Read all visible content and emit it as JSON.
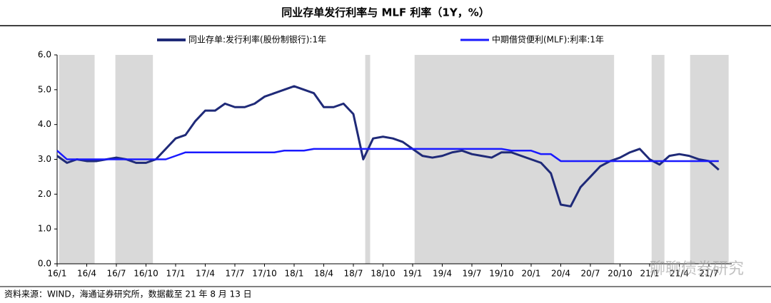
{
  "chart_data": {
    "type": "line",
    "title": "同业存单发行利率与 MLF 利率（1Y，%）",
    "source": "资料来源：WIND，海通证券研究所，数据截至 21 年 8 月 13 日",
    "watermark": "聊聊债券研究",
    "categories": [
      "16/1",
      null,
      null,
      "16/4",
      null,
      null,
      "16/7",
      null,
      null,
      "16/10",
      null,
      null,
      "17/1",
      null,
      null,
      "17/4",
      null,
      null,
      "17/7",
      null,
      null,
      "17/10",
      null,
      null,
      "18/1",
      null,
      null,
      "18/4",
      null,
      null,
      "18/7",
      null,
      null,
      "18/10",
      null,
      null,
      "19/1",
      null,
      null,
      "19/4",
      null,
      null,
      "19/7",
      null,
      null,
      "19/10",
      null,
      null,
      "20/1",
      null,
      null,
      "20/4",
      null,
      null,
      "20/7",
      null,
      null,
      "20/10",
      null,
      null,
      "21/1",
      null,
      null,
      "21/4",
      null,
      null,
      "21/7",
      null
    ],
    "series": [
      {
        "name": "同业存单:发行利率(股份制银行):1年",
        "color": "#1f2a78",
        "values": [
          3.1,
          2.9,
          3.0,
          2.95,
          2.95,
          3.0,
          3.05,
          3.0,
          2.9,
          2.9,
          3.0,
          3.3,
          3.6,
          3.7,
          4.1,
          4.4,
          4.4,
          4.6,
          4.5,
          4.5,
          4.6,
          4.8,
          4.9,
          5.0,
          5.1,
          5.0,
          4.9,
          4.5,
          4.5,
          4.6,
          4.3,
          3.0,
          3.6,
          3.65,
          3.6,
          3.5,
          3.3,
          3.1,
          3.05,
          3.1,
          3.2,
          3.25,
          3.15,
          3.1,
          3.05,
          3.2,
          3.2,
          3.1,
          3.0,
          2.9,
          2.6,
          1.7,
          1.65,
          2.2,
          2.5,
          2.8,
          2.95,
          3.05,
          3.2,
          3.3,
          3.0,
          2.85,
          3.1,
          3.15,
          3.1,
          3.0,
          2.95,
          2.7
        ]
      },
      {
        "name": "中期借贷便利(MLF):利率:1年",
        "color": "#1a1aff",
        "values": [
          3.25,
          3.0,
          3.0,
          3.0,
          3.0,
          3.0,
          3.0,
          3.0,
          3.0,
          3.0,
          3.0,
          3.0,
          3.1,
          3.2,
          3.2,
          3.2,
          3.2,
          3.2,
          3.2,
          3.2,
          3.2,
          3.2,
          3.2,
          3.25,
          3.25,
          3.25,
          3.3,
          3.3,
          3.3,
          3.3,
          3.3,
          3.3,
          3.3,
          3.3,
          3.3,
          3.3,
          3.3,
          3.3,
          3.3,
          3.3,
          3.3,
          3.3,
          3.3,
          3.3,
          3.3,
          3.3,
          3.25,
          3.25,
          3.25,
          3.15,
          3.15,
          2.95,
          2.95,
          2.95,
          2.95,
          2.95,
          2.95,
          2.95,
          2.95,
          2.95,
          2.95,
          2.95,
          2.95,
          2.95,
          2.95,
          2.95,
          2.95,
          2.95
        ]
      }
    ],
    "shaded_periods": [
      [
        0.2,
        3.8
      ],
      [
        5.9,
        9.7
      ],
      [
        31.2,
        31.7
      ],
      [
        36.2,
        56.4
      ],
      [
        60.2,
        61.5
      ],
      [
        64.1,
        68.0
      ]
    ],
    "shade_color": "#d9d9d9",
    "ylim": [
      0,
      6
    ],
    "yticks": [
      {
        "value": 0,
        "label": "0.0"
      },
      {
        "value": 1,
        "label": "1.0"
      },
      {
        "value": 2,
        "label": "2.0"
      },
      {
        "value": 3,
        "label": "3.0"
      },
      {
        "value": 4,
        "label": "4.0"
      },
      {
        "value": 5,
        "label": "5.0"
      },
      {
        "value": 6,
        "label": "6.0"
      }
    ],
    "grid": false
  }
}
